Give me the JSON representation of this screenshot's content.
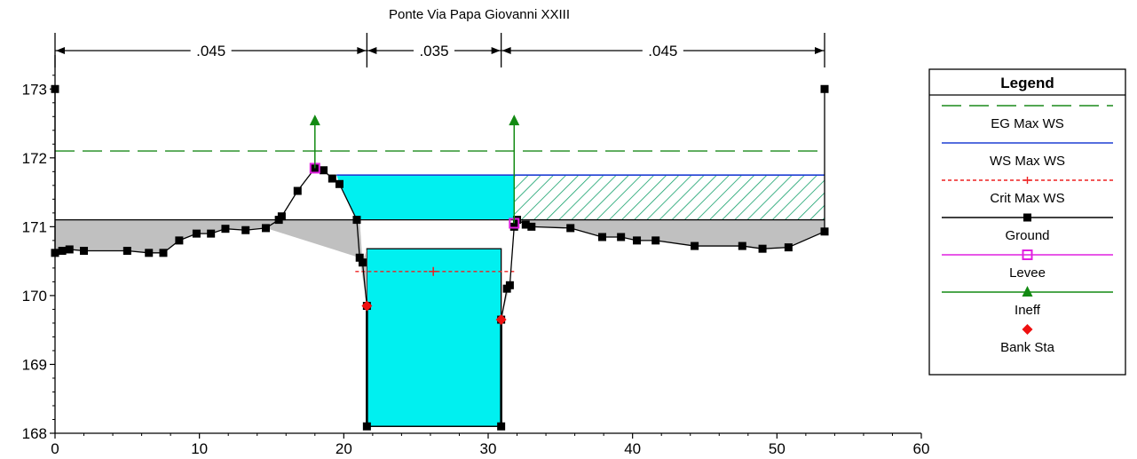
{
  "chart_data": {
    "type": "line",
    "title": "Ponte Via Papa Giovanni XXIII",
    "xlabel": "",
    "ylabel": "",
    "xlim": [
      0,
      60
    ],
    "ylim": [
      168,
      173.3
    ],
    "x_ticks": [
      0,
      10,
      20,
      30,
      40,
      50,
      60
    ],
    "y_ticks": [
      168,
      169,
      170,
      171,
      172,
      173
    ],
    "legend_placement": "right",
    "legend_title": "Legend",
    "manning": [
      {
        "from": 0,
        "to": 21.6,
        "label": ".045"
      },
      {
        "from": 21.6,
        "to": 30.9,
        "label": ".035"
      },
      {
        "from": 30.9,
        "to": 53.3,
        "label": ".045"
      }
    ],
    "series": [
      {
        "name": "EG Max WS",
        "color": "#1a8a1a",
        "style": "dashed",
        "x": [
          0,
          53.3
        ],
        "y": [
          172.1,
          172.1
        ]
      },
      {
        "name": "WS Max WS",
        "color": "#1f3fd4",
        "style": "solid",
        "x": [
          19.5,
          53.3
        ],
        "y": [
          171.75,
          171.75
        ]
      },
      {
        "name": "Crit Max WS",
        "color": "#ee2020",
        "style": "dotted",
        "x": [
          20.8,
          31.8
        ],
        "y": [
          170.35,
          170.35
        ],
        "marker_x": 26.2
      },
      {
        "name": "Ground",
        "color": "#000000",
        "style": "solid",
        "x": [
          0,
          0,
          0.5,
          1,
          2,
          5,
          6.5,
          7.5,
          8.6,
          9.8,
          10.8,
          11.8,
          13.2,
          14.6,
          15.5,
          15.7,
          16.8,
          18,
          18.6,
          19.2,
          19.7,
          20.9,
          21.1,
          21.3,
          21.6,
          21.6,
          30.9,
          30.9,
          31.3,
          31.5,
          31.8,
          32.0,
          32.6,
          33.0,
          35.7,
          37.9,
          39.2,
          40.3,
          41.6,
          44.3,
          47.6,
          49,
          50.8,
          53.3,
          53.3
        ],
        "y": [
          173,
          170.62,
          170.65,
          170.67,
          170.65,
          170.65,
          170.62,
          170.62,
          170.8,
          170.9,
          170.9,
          170.97,
          170.95,
          170.98,
          171.1,
          171.15,
          171.52,
          171.85,
          171.82,
          171.7,
          171.62,
          171.1,
          170.55,
          170.48,
          169.85,
          168.1,
          168.1,
          169.65,
          170.1,
          170.15,
          171.0,
          171.1,
          171.03,
          171.0,
          170.98,
          170.85,
          170.85,
          170.8,
          170.8,
          170.72,
          170.72,
          170.68,
          170.7,
          170.93,
          173
        ]
      },
      {
        "name": "Levee",
        "color": "#e020e0",
        "style": "solid",
        "x": [
          18,
          31.8
        ],
        "y": [
          171.85,
          171.05
        ]
      },
      {
        "name": "Ineff",
        "color": "#128a12",
        "style": "solid",
        "x": [
          18,
          31.8
        ],
        "y": [
          172.55,
          172.55
        ]
      },
      {
        "name": "Bank Sta",
        "color": "#ee1010",
        "style": "marker",
        "x": [
          21.6,
          30.9
        ],
        "y": [
          169.85,
          169.65
        ]
      }
    ],
    "deck": {
      "low_chord": 171.1,
      "x_from": 0,
      "x_to": 53.3
    },
    "opening": {
      "x_from": 21.6,
      "x_to": 30.9,
      "soffit": 170.68,
      "bottom": 168.1
    }
  }
}
